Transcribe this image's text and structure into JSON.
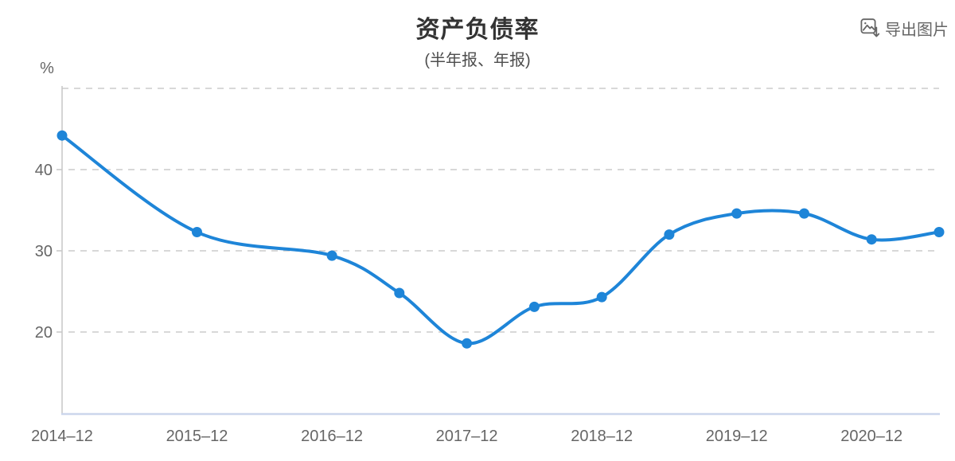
{
  "header": {
    "title": "资产负债率",
    "subtitle": "(半年报、年报)",
    "export_label": "导出图片",
    "export_icon": "image-download-icon"
  },
  "colors": {
    "line": "#1E85D8",
    "marker": "#1E85D8",
    "grid": "#cccccc",
    "axis_left": "#c6c6c6",
    "axis_bottom": "#ccd6ec",
    "tick_text": "#666666",
    "title_text": "#333333",
    "subtitle_text": "#4d4d4d",
    "export_text": "#666666",
    "background": "#ffffff"
  },
  "chart_data": {
    "type": "line",
    "title": "资产负债率",
    "subtitle": "(半年报、年报)",
    "unit": "%",
    "smooth": true,
    "legend_position": "none",
    "grid": "horizontal-dashed",
    "x": [
      "2014–12",
      "2015–12",
      "2016–12",
      "2017–06",
      "2017–12",
      "2018–06",
      "2018–12",
      "2019–06",
      "2019–12",
      "2020–06",
      "2020–12",
      "2021–06"
    ],
    "values": [
      44.2,
      32.3,
      29.4,
      24.8,
      18.6,
      23.1,
      24.3,
      32.0,
      34.6,
      34.6,
      31.4,
      32.3
    ],
    "x_tick_labels": [
      "2014–12",
      "2015–12",
      "2016–12",
      "2017–12",
      "2018–12",
      "2019–12",
      "2020–12"
    ],
    "y_ticks": [
      20,
      30,
      40
    ],
    "y_gridlines": [
      20,
      30,
      40,
      50
    ],
    "ylim": [
      10,
      50
    ]
  }
}
